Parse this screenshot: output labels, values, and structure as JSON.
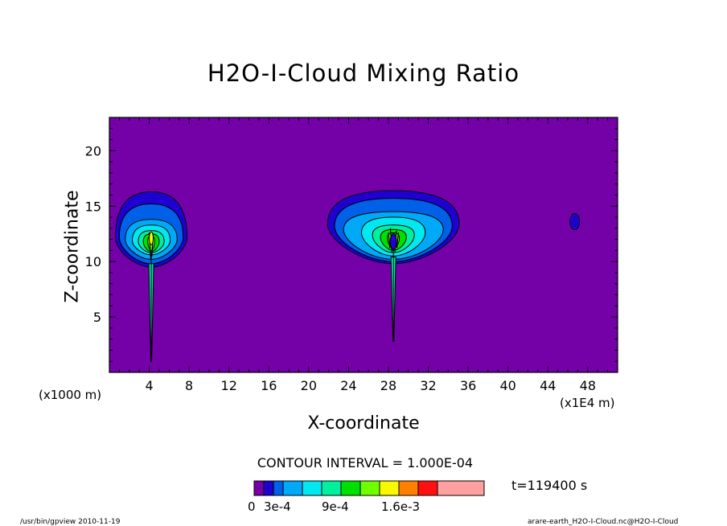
{
  "chart_data": {
    "type": "heatmap",
    "title": "H2O-I-Cloud Mixing Ratio",
    "xlabel": "X-coordinate",
    "ylabel": "Z-coordinate",
    "x_unit_left": "(x1000 m)",
    "x_unit_right": "(x1E4 m)",
    "xlim": [
      0,
      51
    ],
    "ylim": [
      0,
      23
    ],
    "x_ticks": [
      "4",
      "8",
      "12",
      "16",
      "20",
      "24",
      "28",
      "32",
      "36",
      "40",
      "44",
      "48"
    ],
    "y_ticks": [
      "5",
      "10",
      "15",
      "20"
    ],
    "contour_interval": "CONTOUR INTERVAL = 1.000E-04",
    "time": "t=119400 s",
    "colorbar_labels": [
      "0",
      "3e-4",
      "9e-4",
      "1.6e-3"
    ],
    "colorbar_colors": [
      "#7400a8",
      "#1e00d0",
      "#0060e8",
      "#00a8f8",
      "#00e8f0",
      "#00f0a0",
      "#00e000",
      "#70ff00",
      "#f8f800",
      "#ff8000",
      "#ff1010",
      "#ffa0a0"
    ],
    "background_color": "#7400a8",
    "clouds": [
      {
        "name": "left cell",
        "x_center": 4.2,
        "z_range": [
          9.5,
          16.3
        ],
        "x_range": [
          1.2,
          8.0
        ],
        "stem_bottom": 1.0
      },
      {
        "name": "center cell",
        "x_center": 28.5,
        "z_range": [
          9.8,
          16.4
        ],
        "x_range": [
          22.2,
          35.5
        ],
        "stem_bottom": 2.8
      },
      {
        "name": "small blob",
        "x_center": 46.7,
        "z_center": 13.6
      }
    ]
  },
  "footer": {
    "left": "/usr/bin/gpview  2010-11-19",
    "right": "arare-earth_H2O-I-Cloud.nc@H2O-I-Cloud"
  }
}
